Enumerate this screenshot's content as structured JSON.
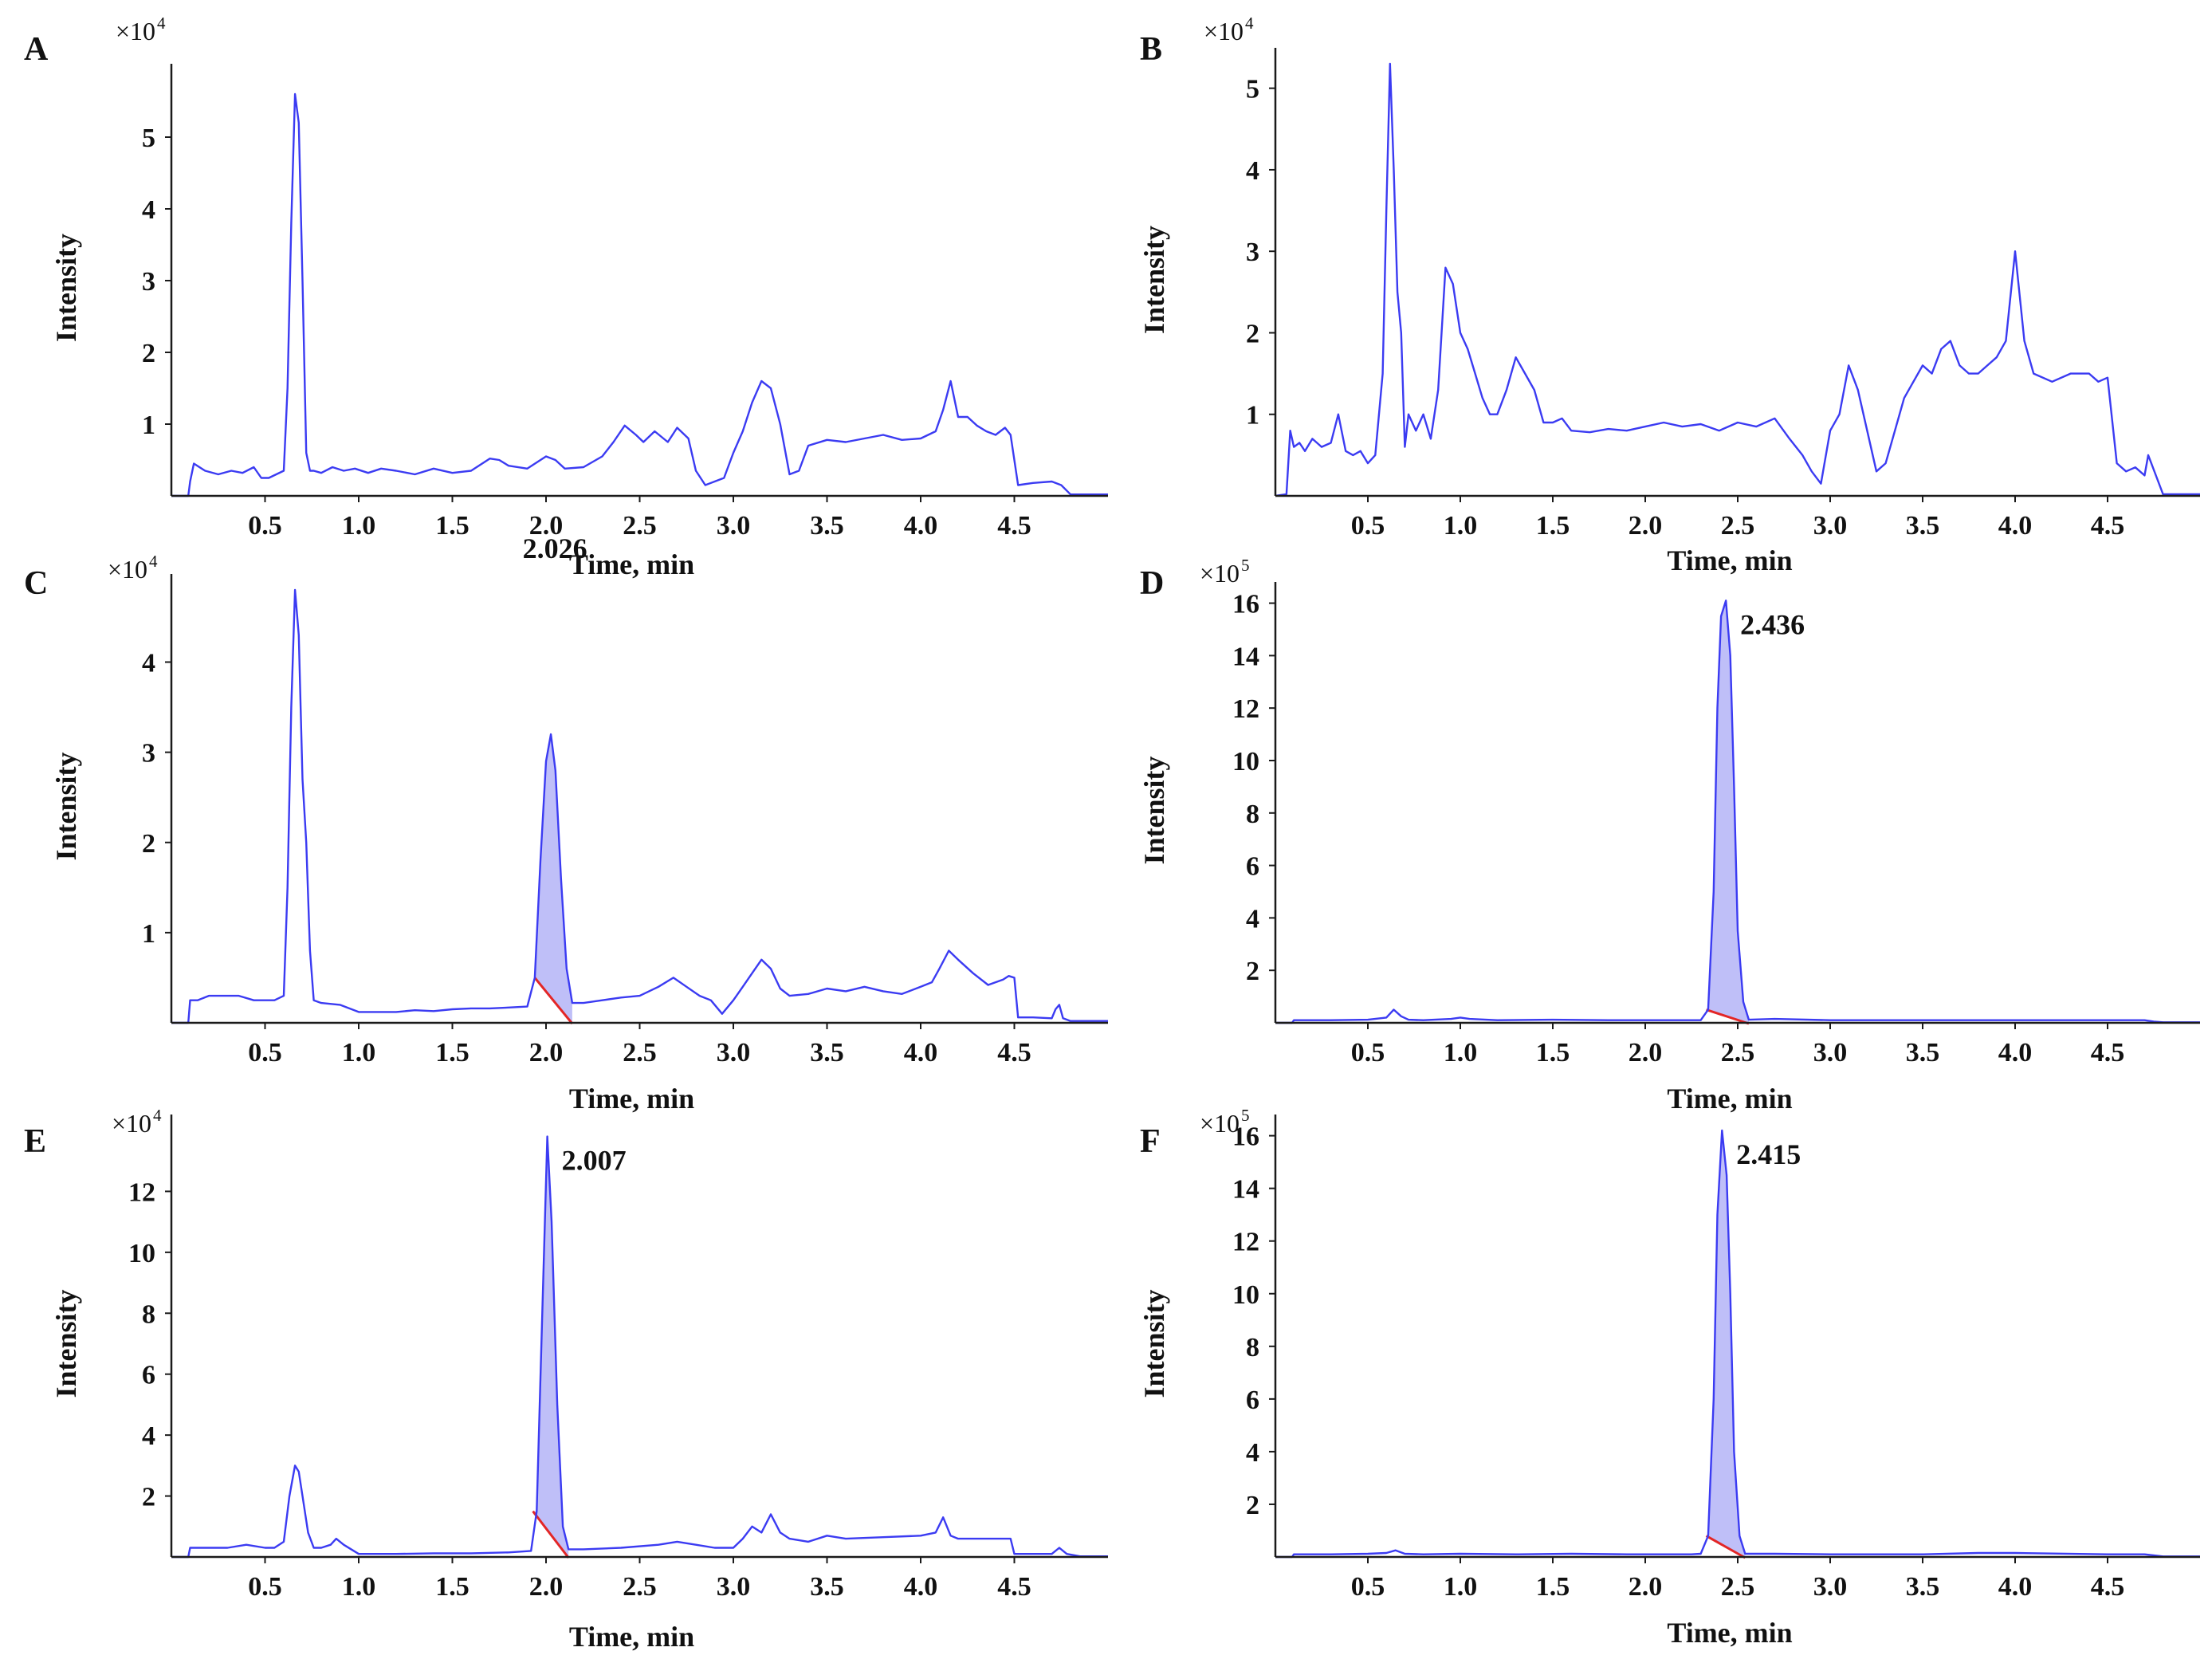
{
  "figure": {
    "colors": {
      "trace": "#3b3bf2",
      "axis": "#1a1a1a",
      "baseline": "#e32626",
      "fill": "#aaaaf6",
      "text": "#111111"
    }
  },
  "chart_data": [
    {
      "type": "line",
      "panel_label": "A",
      "xlabel": "Time, min",
      "ylabel": "Intensity",
      "multiplier_base": "×10",
      "multiplier_exp": "4",
      "xlim": [
        0,
        5.0
      ],
      "ylim": [
        0,
        5.8
      ],
      "xticks": [
        0.5,
        1.0,
        1.5,
        2.0,
        2.5,
        3.0,
        3.5,
        4.0,
        4.5
      ],
      "xtick_labels": [
        "0.5",
        "1.0",
        "1.5",
        "2.0",
        "2.5",
        "3.0",
        "3.5",
        "4.0",
        "4.5"
      ],
      "yticks": [
        1,
        2,
        3,
        4,
        5
      ],
      "ytick_labels": [
        "1",
        "2",
        "3",
        "4",
        "5"
      ],
      "x": [
        0.0,
        0.09,
        0.1,
        0.12,
        0.18,
        0.25,
        0.32,
        0.38,
        0.44,
        0.48,
        0.52,
        0.56,
        0.6,
        0.62,
        0.64,
        0.66,
        0.68,
        0.7,
        0.72,
        0.74,
        0.76,
        0.8,
        0.86,
        0.92,
        0.98,
        1.05,
        1.12,
        1.2,
        1.3,
        1.4,
        1.5,
        1.6,
        1.7,
        1.75,
        1.8,
        1.9,
        2.0,
        2.05,
        2.1,
        2.2,
        2.3,
        2.36,
        2.42,
        2.48,
        2.52,
        2.58,
        2.65,
        2.7,
        2.76,
        2.8,
        2.85,
        2.9,
        2.95,
        3.0,
        3.05,
        3.1,
        3.15,
        3.2,
        3.25,
        3.3,
        3.35,
        3.4,
        3.5,
        3.6,
        3.7,
        3.8,
        3.9,
        4.0,
        4.08,
        4.12,
        4.16,
        4.2,
        4.25,
        4.3,
        4.35,
        4.4,
        4.45,
        4.48,
        4.52,
        4.6,
        4.7,
        4.75,
        4.8,
        4.9,
        5.0
      ],
      "values": [
        0,
        0,
        0.2,
        0.45,
        0.35,
        0.3,
        0.35,
        0.32,
        0.4,
        0.25,
        0.25,
        0.3,
        0.35,
        1.5,
        3.8,
        5.6,
        5.2,
        3.0,
        0.6,
        0.35,
        0.35,
        0.32,
        0.4,
        0.35,
        0.38,
        0.32,
        0.38,
        0.35,
        0.3,
        0.38,
        0.32,
        0.35,
        0.52,
        0.5,
        0.42,
        0.38,
        0.55,
        0.5,
        0.38,
        0.4,
        0.55,
        0.75,
        0.98,
        0.85,
        0.75,
        0.9,
        0.75,
        0.95,
        0.8,
        0.35,
        0.15,
        0.2,
        0.25,
        0.6,
        0.9,
        1.3,
        1.6,
        1.5,
        1.0,
        0.3,
        0.35,
        0.7,
        0.78,
        0.75,
        0.8,
        0.85,
        0.78,
        0.8,
        0.9,
        1.2,
        1.6,
        1.1,
        1.1,
        0.98,
        0.9,
        0.85,
        0.95,
        0.85,
        0.15,
        0.18,
        0.2,
        0.15,
        0.02,
        0.02,
        0.02
      ],
      "peak_label": "",
      "peak_x": null,
      "shaded_range": null
    },
    {
      "type": "line",
      "panel_label": "B",
      "xlabel": "Time, min",
      "ylabel": "Intensity",
      "multiplier_base": "×10",
      "multiplier_exp": "4",
      "xlim": [
        0,
        5.0
      ],
      "ylim": [
        0,
        5.3
      ],
      "xticks": [
        0.5,
        1.0,
        1.5,
        2.0,
        2.5,
        3.0,
        3.5,
        4.0,
        4.5
      ],
      "xtick_labels": [
        "0.5",
        "1.0",
        "1.5",
        "2.0",
        "2.5",
        "3.0",
        "3.5",
        "4.0",
        "4.5"
      ],
      "yticks": [
        1,
        2,
        3,
        4,
        5
      ],
      "ytick_labels": [
        "1",
        "2",
        "3",
        "4",
        "5"
      ],
      "x": [
        0.0,
        0.06,
        0.08,
        0.1,
        0.13,
        0.16,
        0.2,
        0.25,
        0.3,
        0.34,
        0.38,
        0.42,
        0.46,
        0.5,
        0.54,
        0.58,
        0.6,
        0.62,
        0.64,
        0.66,
        0.68,
        0.7,
        0.72,
        0.76,
        0.8,
        0.84,
        0.88,
        0.92,
        0.96,
        1.0,
        1.04,
        1.08,
        1.12,
        1.16,
        1.2,
        1.25,
        1.3,
        1.35,
        1.4,
        1.45,
        1.5,
        1.55,
        1.6,
        1.7,
        1.8,
        1.9,
        2.0,
        2.1,
        2.2,
        2.3,
        2.4,
        2.5,
        2.6,
        2.7,
        2.78,
        2.85,
        2.9,
        2.95,
        3.0,
        3.05,
        3.1,
        3.15,
        3.2,
        3.25,
        3.3,
        3.35,
        3.4,
        3.45,
        3.5,
        3.55,
        3.6,
        3.65,
        3.7,
        3.75,
        3.8,
        3.85,
        3.9,
        3.95,
        4.0,
        4.05,
        4.1,
        4.2,
        4.3,
        4.4,
        4.45,
        4.5,
        4.55,
        4.6,
        4.65,
        4.7,
        4.72,
        4.8,
        5.0
      ],
      "values": [
        0,
        0.02,
        0.8,
        0.6,
        0.65,
        0.55,
        0.7,
        0.6,
        0.65,
        1.0,
        0.55,
        0.5,
        0.55,
        0.4,
        0.5,
        1.5,
        3.5,
        5.3,
        4.0,
        2.5,
        2.0,
        0.6,
        1.0,
        0.8,
        1.0,
        0.7,
        1.3,
        2.8,
        2.6,
        2.0,
        1.8,
        1.5,
        1.2,
        1.0,
        1.0,
        1.3,
        1.7,
        1.5,
        1.3,
        0.9,
        0.9,
        0.95,
        0.8,
        0.78,
        0.82,
        0.8,
        0.85,
        0.9,
        0.85,
        0.88,
        0.8,
        0.9,
        0.85,
        0.95,
        0.7,
        0.5,
        0.3,
        0.15,
        0.8,
        1.0,
        1.6,
        1.3,
        0.8,
        0.3,
        0.4,
        0.8,
        1.2,
        1.4,
        1.6,
        1.5,
        1.8,
        1.9,
        1.6,
        1.5,
        1.5,
        1.6,
        1.7,
        1.9,
        3.0,
        1.9,
        1.5,
        1.4,
        1.5,
        1.5,
        1.4,
        1.45,
        0.4,
        0.3,
        0.35,
        0.25,
        0.5,
        0.02,
        0.02
      ],
      "peak_label": "",
      "peak_x": null,
      "shaded_range": null
    },
    {
      "type": "line",
      "panel_label": "C",
      "xlabel": "Time, min",
      "ylabel": "Intensity",
      "multiplier_base": "×10",
      "multiplier_exp": "4",
      "xlim": [
        0,
        5.0
      ],
      "ylim": [
        0,
        4.8
      ],
      "xticks": [
        0.5,
        1.0,
        1.5,
        2.0,
        2.5,
        3.0,
        3.5,
        4.0,
        4.5
      ],
      "xtick_labels": [
        "0.5",
        "1.0",
        "1.5",
        "2.0",
        "2.5",
        "3.0",
        "3.5",
        "4.0",
        "4.5"
      ],
      "yticks": [
        1,
        2,
        3,
        4
      ],
      "ytick_labels": [
        "1",
        "2",
        "3",
        "4"
      ],
      "x": [
        0.0,
        0.09,
        0.1,
        0.14,
        0.2,
        0.28,
        0.36,
        0.44,
        0.5,
        0.55,
        0.6,
        0.62,
        0.64,
        0.66,
        0.68,
        0.7,
        0.72,
        0.74,
        0.76,
        0.8,
        0.9,
        1.0,
        1.1,
        1.2,
        1.3,
        1.4,
        1.5,
        1.6,
        1.7,
        1.8,
        1.9,
        1.94,
        1.97,
        2.0,
        2.026,
        2.05,
        2.08,
        2.11,
        2.14,
        2.2,
        2.3,
        2.4,
        2.5,
        2.6,
        2.68,
        2.75,
        2.82,
        2.88,
        2.94,
        3.0,
        3.05,
        3.1,
        3.15,
        3.2,
        3.25,
        3.3,
        3.4,
        3.5,
        3.6,
        3.7,
        3.8,
        3.9,
        4.0,
        4.06,
        4.1,
        4.15,
        4.2,
        4.28,
        4.36,
        4.44,
        4.47,
        4.5,
        4.52,
        4.6,
        4.7,
        4.72,
        4.74,
        4.76,
        4.8,
        4.9,
        5.0
      ],
      "values": [
        0,
        0,
        0.25,
        0.25,
        0.3,
        0.3,
        0.3,
        0.25,
        0.25,
        0.25,
        0.3,
        1.5,
        3.5,
        4.8,
        4.3,
        2.7,
        2.0,
        0.8,
        0.25,
        0.22,
        0.2,
        0.12,
        0.12,
        0.12,
        0.14,
        0.13,
        0.15,
        0.16,
        0.16,
        0.17,
        0.18,
        0.5,
        1.8,
        2.9,
        3.2,
        2.8,
        1.6,
        0.6,
        0.22,
        0.22,
        0.25,
        0.28,
        0.3,
        0.4,
        0.5,
        0.4,
        0.3,
        0.25,
        0.1,
        0.25,
        0.4,
        0.55,
        0.7,
        0.6,
        0.38,
        0.3,
        0.32,
        0.38,
        0.35,
        0.4,
        0.35,
        0.32,
        0.4,
        0.45,
        0.6,
        0.8,
        0.7,
        0.55,
        0.42,
        0.48,
        0.52,
        0.5,
        0.06,
        0.06,
        0.05,
        0.15,
        0.2,
        0.05,
        0.02,
        0.02,
        0.02
      ],
      "peak_label": "2.026",
      "peak_x": 2.026,
      "shaded_range": [
        1.94,
        2.14
      ]
    },
    {
      "type": "line",
      "panel_label": "D",
      "xlabel": "Time, min",
      "ylabel": "Intensity",
      "multiplier_base": "×10",
      "multiplier_exp": "5",
      "xlim": [
        0,
        5.0
      ],
      "ylim": [
        0,
        16.2
      ],
      "xticks": [
        0.5,
        1.0,
        1.5,
        2.0,
        2.5,
        3.0,
        3.5,
        4.0,
        4.5
      ],
      "xtick_labels": [
        "0.5",
        "1.0",
        "1.5",
        "2.0",
        "2.5",
        "3.0",
        "3.5",
        "4.0",
        "4.5"
      ],
      "yticks": [
        2,
        4,
        6,
        8,
        10,
        12,
        14,
        16
      ],
      "ytick_labels": [
        "2",
        "4",
        "6",
        "8",
        "10",
        "12",
        "14",
        "16"
      ],
      "x": [
        0.0,
        0.09,
        0.1,
        0.3,
        0.5,
        0.6,
        0.64,
        0.68,
        0.72,
        0.8,
        0.95,
        1.0,
        1.05,
        1.2,
        1.5,
        1.8,
        2.1,
        2.3,
        2.34,
        2.37,
        2.39,
        2.41,
        2.436,
        2.46,
        2.48,
        2.5,
        2.53,
        2.56,
        2.7,
        3.0,
        3.5,
        4.0,
        4.5,
        4.7,
        4.75,
        4.8,
        5.0
      ],
      "values": [
        0,
        0,
        0.1,
        0.1,
        0.12,
        0.2,
        0.5,
        0.25,
        0.12,
        0.1,
        0.15,
        0.2,
        0.15,
        0.1,
        0.12,
        0.1,
        0.1,
        0.1,
        0.5,
        5.0,
        12.0,
        15.5,
        16.1,
        14.0,
        9.0,
        3.5,
        0.8,
        0.12,
        0.15,
        0.1,
        0.1,
        0.1,
        0.1,
        0.1,
        0.05,
        0.02,
        0.02
      ],
      "peak_label": "2.436",
      "peak_x": 2.436,
      "shaded_range": [
        2.33,
        2.56
      ]
    },
    {
      "type": "line",
      "panel_label": "E",
      "xlabel": "Time, min",
      "ylabel": "Intensity",
      "multiplier_base": "×10",
      "multiplier_exp": "4",
      "xlim": [
        0,
        5.0
      ],
      "ylim": [
        0,
        14.0
      ],
      "xticks": [
        0.5,
        1.0,
        1.5,
        2.0,
        2.5,
        3.0,
        3.5,
        4.0,
        4.5
      ],
      "xtick_labels": [
        "0.5",
        "1.0",
        "1.5",
        "2.0",
        "2.5",
        "3.0",
        "3.5",
        "4.0",
        "4.5"
      ],
      "yticks": [
        2,
        4,
        6,
        8,
        10,
        12
      ],
      "ytick_labels": [
        "2",
        "4",
        "6",
        "8",
        "10",
        "12"
      ],
      "x": [
        0.0,
        0.09,
        0.1,
        0.2,
        0.3,
        0.4,
        0.5,
        0.55,
        0.6,
        0.63,
        0.66,
        0.68,
        0.7,
        0.73,
        0.76,
        0.8,
        0.85,
        0.88,
        0.92,
        1.0,
        1.2,
        1.4,
        1.6,
        1.8,
        1.92,
        1.95,
        1.98,
        2.007,
        2.03,
        2.06,
        2.09,
        2.12,
        2.2,
        2.4,
        2.6,
        2.7,
        2.8,
        2.9,
        3.0,
        3.05,
        3.1,
        3.15,
        3.2,
        3.25,
        3.3,
        3.4,
        3.5,
        3.6,
        3.8,
        4.0,
        4.08,
        4.12,
        4.16,
        4.2,
        4.3,
        4.45,
        4.48,
        4.5,
        4.6,
        4.7,
        4.74,
        4.78,
        4.85,
        5.0
      ],
      "values": [
        0,
        0,
        0.3,
        0.3,
        0.3,
        0.4,
        0.3,
        0.3,
        0.5,
        2.0,
        3.0,
        2.8,
        2.0,
        0.8,
        0.3,
        0.3,
        0.4,
        0.6,
        0.4,
        0.1,
        0.1,
        0.12,
        0.12,
        0.15,
        0.2,
        1.5,
        8.0,
        13.8,
        11.0,
        5.0,
        1.0,
        0.25,
        0.25,
        0.3,
        0.4,
        0.5,
        0.4,
        0.3,
        0.3,
        0.6,
        1.0,
        0.8,
        1.4,
        0.8,
        0.6,
        0.5,
        0.7,
        0.6,
        0.65,
        0.7,
        0.8,
        1.3,
        0.7,
        0.6,
        0.6,
        0.6,
        0.6,
        0.1,
        0.1,
        0.1,
        0.3,
        0.1,
        0.02,
        0.02
      ],
      "peak_label": "2.007",
      "peak_x": 2.007,
      "shaded_range": [
        1.93,
        2.12
      ]
    },
    {
      "type": "line",
      "panel_label": "F",
      "xlabel": "Time, min",
      "ylabel": "Intensity",
      "multiplier_base": "×10",
      "multiplier_exp": "5",
      "xlim": [
        0,
        5.0
      ],
      "ylim": [
        0,
        16.2
      ],
      "xticks": [
        0.5,
        1.0,
        1.5,
        2.0,
        2.5,
        3.0,
        3.5,
        4.0,
        4.5
      ],
      "xtick_labels": [
        "0.5",
        "1.0",
        "1.5",
        "2.0",
        "2.5",
        "3.0",
        "3.5",
        "4.0",
        "4.5"
      ],
      "yticks": [
        2,
        4,
        6,
        8,
        10,
        12,
        14,
        16
      ],
      "ytick_labels": [
        "2",
        "4",
        "6",
        "8",
        "10",
        "12",
        "14",
        "16"
      ],
      "x": [
        0.0,
        0.09,
        0.1,
        0.3,
        0.5,
        0.6,
        0.65,
        0.7,
        0.8,
        1.0,
        1.3,
        1.6,
        1.9,
        2.1,
        2.25,
        2.3,
        2.34,
        2.37,
        2.39,
        2.415,
        2.44,
        2.46,
        2.48,
        2.51,
        2.54,
        2.7,
        3.0,
        3.5,
        3.8,
        4.0,
        4.5,
        4.7,
        4.8,
        5.0
      ],
      "values": [
        0,
        0,
        0.1,
        0.1,
        0.12,
        0.15,
        0.25,
        0.12,
        0.1,
        0.12,
        0.1,
        0.12,
        0.1,
        0.1,
        0.1,
        0.12,
        0.8,
        6.0,
        13.0,
        16.2,
        14.5,
        10.0,
        4.0,
        0.8,
        0.12,
        0.12,
        0.1,
        0.1,
        0.15,
        0.15,
        0.1,
        0.1,
        0.02,
        0.02
      ],
      "peak_label": "2.415",
      "peak_x": 2.415,
      "shaded_range": [
        2.33,
        2.54
      ]
    }
  ]
}
